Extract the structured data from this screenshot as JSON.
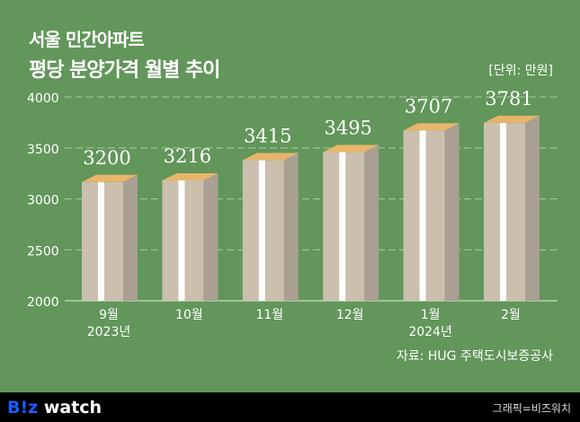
{
  "title": "서울 민간아파트",
  "subtitle": "평당 분양가격 월별 추이",
  "unit": "[단위: 만원]",
  "source": "자료: HUG 주택도시보증공사",
  "footer": {
    "logo_b": "B!z",
    "logo_rest": " watch",
    "credit": "그래픽=비즈워치"
  },
  "colors": {
    "background": "#62965a",
    "bar_front": "#cbbfae",
    "bar_side": "#a99f93",
    "band": "#ffffff",
    "top": "#e8b56b"
  },
  "chart_data": {
    "type": "bar",
    "categories": [
      "9월",
      "10월",
      "11월",
      "12월",
      "1월",
      "2월"
    ],
    "year_labels": [
      "2023년",
      "",
      "",
      "",
      "2024년",
      ""
    ],
    "values": [
      3200,
      3216,
      3415,
      3495,
      3707,
      3781
    ],
    "ylim": [
      2000,
      4000
    ],
    "yticks": [
      2000,
      2500,
      3000,
      3500,
      4000
    ],
    "grid": true
  }
}
